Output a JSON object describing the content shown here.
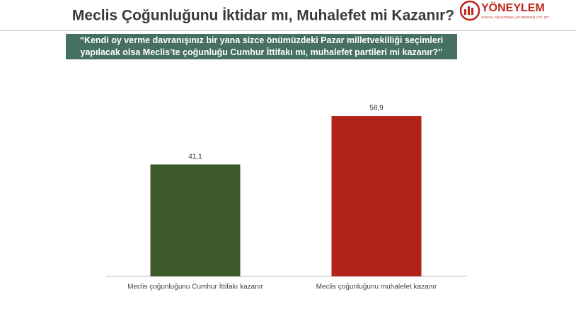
{
  "chart_data": {
    "type": "bar",
    "title": "Meclis Çoğunluğunu İktidar mı, Muhalefet mi Kazanır?",
    "subtitle": "“Kendi oy verme davranışınız bir yana sizce önümüzdeki Pazar milletvekilliği seçimleri yapılacak olsa Meclis’te çoğunluğu Cumhur İttifakı mı, muhalefet partileri mi kazanır?”",
    "logo": {
      "name": "YÖNEYLEM",
      "tagline": "SOSYAL ARAŞTIRMALAR MERKEZİ LTD. ŞTİ."
    },
    "categories": [
      "Meclis çoğunluğunu Cumhur İttifakı kazanır",
      "Meclis çoğunluğunu muhalefet kazanır"
    ],
    "values": [
      41.1,
      58.9
    ],
    "value_labels": [
      "41,1",
      "58,9"
    ],
    "colors": [
      "#3d5a2b",
      "#b12318"
    ]
  }
}
